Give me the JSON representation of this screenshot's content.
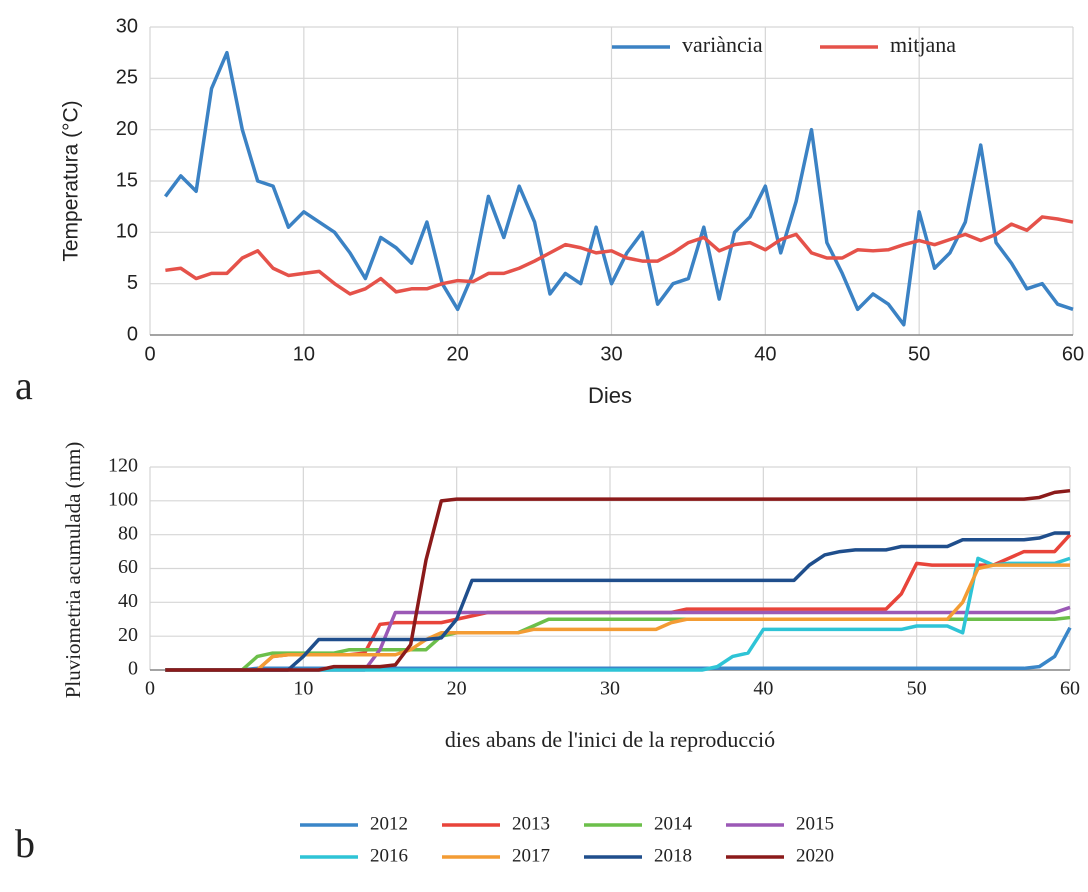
{
  "chart_data": [
    {
      "type": "line",
      "panel_label": "a",
      "x_label": "Dies",
      "y_label": "Temperatura (°C)",
      "x": [
        1,
        2,
        3,
        4,
        5,
        6,
        7,
        8,
        9,
        10,
        11,
        12,
        13,
        14,
        15,
        16,
        17,
        18,
        19,
        20,
        21,
        22,
        23,
        24,
        25,
        26,
        27,
        28,
        29,
        30,
        31,
        32,
        33,
        34,
        35,
        36,
        37,
        38,
        39,
        40,
        41,
        42,
        43,
        44,
        45,
        46,
        47,
        48,
        49,
        50,
        51,
        52,
        53,
        54,
        55,
        56,
        57,
        58,
        59,
        60
      ],
      "xlim": [
        0,
        60
      ],
      "xticks": [
        0,
        10,
        20,
        30,
        40,
        50,
        60
      ],
      "ylim": [
        0,
        30
      ],
      "yticks": [
        0,
        5,
        10,
        15,
        20,
        25,
        30
      ],
      "grid": true,
      "legend": "upper right",
      "series": [
        {
          "name": "variància",
          "color": "#3b82c4",
          "values": [
            13.5,
            15.5,
            14,
            24,
            27.5,
            20,
            15,
            14.5,
            10.5,
            12,
            11,
            10,
            8,
            5.5,
            9.5,
            8.5,
            7,
            11,
            5,
            2.5,
            6,
            13.5,
            9.5,
            14.5,
            11,
            4,
            6,
            5,
            10.5,
            5,
            8,
            10,
            3,
            5,
            5.5,
            10.5,
            3.5,
            10,
            11.5,
            14.5,
            8,
            13,
            20,
            9,
            6,
            2.5,
            4,
            3,
            1,
            12,
            6.5,
            8,
            11,
            18.5,
            9,
            7,
            4.5,
            5,
            3,
            2.5
          ]
        },
        {
          "name": "mitjana",
          "color": "#e5524a",
          "values": [
            6.3,
            6.5,
            5.5,
            6,
            6,
            7.5,
            8.2,
            6.5,
            5.8,
            6,
            6.2,
            5,
            4,
            4.5,
            5.5,
            4.2,
            4.5,
            4.5,
            5,
            5.3,
            5.2,
            6,
            6,
            6.5,
            7.2,
            8,
            8.8,
            8.5,
            8,
            8.2,
            7.5,
            7.2,
            7.2,
            8,
            9,
            9.5,
            8.2,
            8.8,
            9,
            8.3,
            9.3,
            9.8,
            8,
            7.5,
            7.5,
            8.3,
            8.2,
            8.3,
            8.8,
            9.2,
            8.8,
            9.3,
            9.8,
            9.2,
            9.8,
            10.8,
            10.2,
            11.5,
            11.3,
            11
          ]
        }
      ]
    },
    {
      "type": "line",
      "panel_label": "b",
      "x_label": "dies abans de l'inici de la reproducció",
      "y_label": "Pluviometria acumulada (mm)",
      "x": [
        1,
        2,
        3,
        4,
        5,
        6,
        7,
        8,
        9,
        10,
        11,
        12,
        13,
        14,
        15,
        16,
        17,
        18,
        19,
        20,
        21,
        22,
        23,
        24,
        25,
        26,
        27,
        28,
        29,
        30,
        31,
        32,
        33,
        34,
        35,
        36,
        37,
        38,
        39,
        40,
        41,
        42,
        43,
        44,
        45,
        46,
        47,
        48,
        49,
        50,
        51,
        52,
        53,
        54,
        55,
        56,
        57,
        58,
        59,
        60
      ],
      "xlim": [
        0,
        60
      ],
      "xticks": [
        0,
        10,
        20,
        30,
        40,
        50,
        60
      ],
      "ylim": [
        0,
        120
      ],
      "yticks": [
        0,
        20,
        40,
        60,
        80,
        100,
        120
      ],
      "grid": true,
      "legend": "below",
      "series": [
        {
          "name": "2012",
          "color": "#3a86c8",
          "values": [
            0,
            0,
            0,
            0,
            0,
            0,
            1,
            1,
            1,
            1,
            1,
            1,
            1,
            1,
            1,
            1,
            1,
            1,
            1,
            1,
            1,
            1,
            1,
            1,
            1,
            1,
            1,
            1,
            1,
            1,
            1,
            1,
            1,
            1,
            1,
            1,
            1,
            1,
            1,
            1,
            1,
            1,
            1,
            1,
            1,
            1,
            1,
            1,
            1,
            1,
            1,
            1,
            1,
            1,
            1,
            1,
            1,
            2,
            8,
            25
          ]
        },
        {
          "name": "2013",
          "color": "#e8443a",
          "values": [
            0,
            0,
            0,
            0,
            0,
            0,
            0,
            8,
            9,
            9,
            9,
            9,
            9,
            10,
            27,
            28,
            28,
            28,
            28,
            30,
            32,
            34,
            34,
            34,
            34,
            34,
            34,
            34,
            34,
            34,
            34,
            34,
            34,
            34,
            36,
            36,
            36,
            36,
            36,
            36,
            36,
            36,
            36,
            36,
            36,
            36,
            36,
            36,
            45,
            63,
            62,
            62,
            62,
            62,
            62,
            66,
            70,
            70,
            70,
            80
          ]
        },
        {
          "name": "2014",
          "color": "#6cbf4a",
          "values": [
            0,
            0,
            0,
            0,
            0,
            0,
            8,
            10,
            10,
            10,
            10,
            10,
            12,
            12,
            12,
            12,
            12,
            12,
            20,
            22,
            22,
            22,
            22,
            22,
            26,
            30,
            30,
            30,
            30,
            30,
            30,
            30,
            30,
            30,
            30,
            30,
            30,
            30,
            30,
            30,
            30,
            30,
            30,
            30,
            30,
            30,
            30,
            30,
            30,
            30,
            30,
            30,
            30,
            30,
            30,
            30,
            30,
            30,
            30,
            31
          ]
        },
        {
          "name": "2015",
          "color": "#9b59b6",
          "values": [
            0,
            0,
            0,
            0,
            0,
            0,
            0,
            0,
            0,
            0,
            0,
            0,
            0,
            0,
            12,
            34,
            34,
            34,
            34,
            34,
            34,
            34,
            34,
            34,
            34,
            34,
            34,
            34,
            34,
            34,
            34,
            34,
            34,
            34,
            34,
            34,
            34,
            34,
            34,
            34,
            34,
            34,
            34,
            34,
            34,
            34,
            34,
            34,
            34,
            34,
            34,
            34,
            34,
            34,
            34,
            34,
            34,
            34,
            34,
            37
          ]
        },
        {
          "name": "2016",
          "color": "#2ec4d6",
          "values": [
            0,
            0,
            0,
            0,
            0,
            0,
            0,
            0,
            0,
            0,
            0,
            0,
            0,
            0,
            0,
            0,
            0,
            0,
            0,
            0,
            0,
            0,
            0,
            0,
            0,
            0,
            0,
            0,
            0,
            0,
            0,
            0,
            0,
            0,
            0,
            0,
            2,
            8,
            10,
            24,
            24,
            24,
            24,
            24,
            24,
            24,
            24,
            24,
            24,
            26,
            26,
            26,
            22,
            66,
            62,
            63,
            63,
            63,
            63,
            66
          ]
        },
        {
          "name": "2017",
          "color": "#f39c34",
          "values": [
            0,
            0,
            0,
            0,
            0,
            0,
            0,
            8,
            9,
            9,
            9,
            9,
            9,
            9,
            9,
            9,
            12,
            18,
            22,
            22,
            22,
            22,
            22,
            22,
            24,
            24,
            24,
            24,
            24,
            24,
            24,
            24,
            24,
            28,
            30,
            30,
            30,
            30,
            30,
            30,
            30,
            30,
            30,
            30,
            30,
            30,
            30,
            30,
            30,
            30,
            30,
            30,
            40,
            60,
            62,
            62,
            62,
            62,
            62,
            62
          ]
        },
        {
          "name": "2018",
          "color": "#1f4e8c",
          "values": [
            0,
            0,
            0,
            0,
            0,
            0,
            0,
            0,
            0,
            8,
            18,
            18,
            18,
            18,
            18,
            18,
            18,
            18,
            19,
            30,
            53,
            53,
            53,
            53,
            53,
            53,
            53,
            53,
            53,
            53,
            53,
            53,
            53,
            53,
            53,
            53,
            53,
            53,
            53,
            53,
            53,
            53,
            62,
            68,
            70,
            71,
            71,
            71,
            73,
            73,
            73,
            73,
            77,
            77,
            77,
            77,
            77,
            78,
            81,
            81
          ]
        },
        {
          "name": "2020",
          "color": "#8b1a1a",
          "values": [
            0,
            0,
            0,
            0,
            0,
            0,
            0,
            0,
            0,
            0,
            0,
            2,
            2,
            2,
            2,
            3,
            15,
            65,
            100,
            101,
            101,
            101,
            101,
            101,
            101,
            101,
            101,
            101,
            101,
            101,
            101,
            101,
            101,
            101,
            101,
            101,
            101,
            101,
            101,
            101,
            101,
            101,
            101,
            101,
            101,
            101,
            101,
            101,
            101,
            101,
            101,
            101,
            101,
            101,
            101,
            101,
            101,
            102,
            105,
            106
          ]
        }
      ]
    }
  ]
}
